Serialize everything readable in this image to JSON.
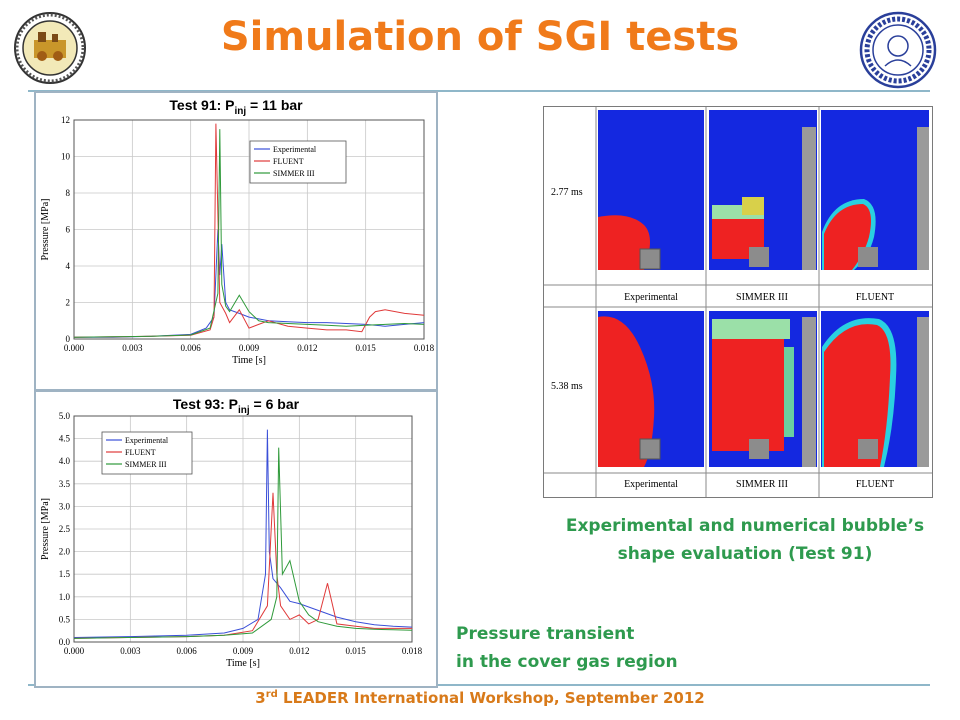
{
  "slide": {
    "title": "Simulation of SGI tests",
    "footer_prefix": "3",
    "footer_sup": "rd",
    "footer_rest": " LEADER International Workshop, September 2012",
    "colors": {
      "title": "#f07a1a",
      "caption": "#2e9a4e",
      "footer": "#d87a1a",
      "rule": "#8fb7c9"
    }
  },
  "logos": {
    "left": {
      "icon": "enea-seal-icon",
      "text": "ENEA"
    },
    "right": {
      "icon": "university-seal-icon",
      "text": "IN SUPREMÆ DIGNITATIS 1343"
    }
  },
  "captions": {
    "bubble_line1": "Experimental and numerical bubble’s",
    "bubble_line2": "shape evaluation (Test 91)",
    "pressure_line1": "Pressure transient",
    "pressure_line2": "in the cover gas region"
  },
  "bubble_figure": {
    "rows": [
      "2.77 ms",
      "5.38 ms"
    ],
    "columns": [
      "Experimental",
      "SIMMER III",
      "FLUENT"
    ]
  },
  "chart_data": [
    {
      "type": "line",
      "title_main": "Test 91: P",
      "title_sub": "inj",
      "title_tail": " = 11 bar",
      "xlabel": "Time [s]",
      "ylabel": "Pressure [MPa]",
      "xlim": [
        0,
        0.018
      ],
      "ylim": [
        0,
        12
      ],
      "xticks": [
        "0.000",
        "0.003",
        "0.006",
        "0.009",
        "0.012",
        "0.015",
        "0.018"
      ],
      "yticks": [
        "0",
        "2",
        "4",
        "6",
        "8",
        "10",
        "12"
      ],
      "legend_position": "top-right",
      "grid": true,
      "series": [
        {
          "name": "Experimental",
          "color": "#3a4fd8",
          "points": [
            [
              0,
              0.1
            ],
            [
              0.002,
              0.1
            ],
            [
              0.004,
              0.15
            ],
            [
              0.006,
              0.25
            ],
            [
              0.0068,
              0.6
            ],
            [
              0.0072,
              1.2
            ],
            [
              0.0074,
              6.0
            ],
            [
              0.0075,
              3.5
            ],
            [
              0.0076,
              5.2
            ],
            [
              0.0078,
              2.0
            ],
            [
              0.008,
              1.6
            ],
            [
              0.0085,
              1.4
            ],
            [
              0.009,
              1.2
            ],
            [
              0.0095,
              1.1
            ],
            [
              0.01,
              1.0
            ],
            [
              0.011,
              0.95
            ],
            [
              0.012,
              0.9
            ],
            [
              0.013,
              0.9
            ],
            [
              0.014,
              0.85
            ],
            [
              0.015,
              0.8
            ],
            [
              0.016,
              0.7
            ],
            [
              0.017,
              0.8
            ],
            [
              0.018,
              0.9
            ]
          ]
        },
        {
          "name": "FLUENT",
          "color": "#e03a3a",
          "points": [
            [
              0,
              0.1
            ],
            [
              0.002,
              0.12
            ],
            [
              0.004,
              0.15
            ],
            [
              0.006,
              0.2
            ],
            [
              0.007,
              0.5
            ],
            [
              0.0072,
              1.2
            ],
            [
              0.0073,
              11.8
            ],
            [
              0.0075,
              2.0
            ],
            [
              0.0078,
              1.4
            ],
            [
              0.008,
              0.9
            ],
            [
              0.0085,
              1.6
            ],
            [
              0.009,
              0.6
            ],
            [
              0.0095,
              0.8
            ],
            [
              0.01,
              1.0
            ],
            [
              0.011,
              0.7
            ],
            [
              0.012,
              0.6
            ],
            [
              0.013,
              0.5
            ],
            [
              0.014,
              0.5
            ],
            [
              0.0148,
              0.4
            ],
            [
              0.0152,
              1.2
            ],
            [
              0.0155,
              1.5
            ],
            [
              0.016,
              1.6
            ],
            [
              0.017,
              1.4
            ],
            [
              0.018,
              1.3
            ]
          ]
        },
        {
          "name": "SIMMER III",
          "color": "#2f9a3a",
          "points": [
            [
              0,
              0.1
            ],
            [
              0.002,
              0.12
            ],
            [
              0.004,
              0.15
            ],
            [
              0.006,
              0.22
            ],
            [
              0.007,
              0.6
            ],
            [
              0.0074,
              2.5
            ],
            [
              0.0075,
              11.5
            ],
            [
              0.0076,
              3.0
            ],
            [
              0.0078,
              1.8
            ],
            [
              0.008,
              1.5
            ],
            [
              0.0085,
              2.4
            ],
            [
              0.009,
              1.5
            ],
            [
              0.0095,
              1.0
            ],
            [
              0.01,
              0.9
            ],
            [
              0.011,
              0.85
            ],
            [
              0.012,
              0.8
            ],
            [
              0.013,
              0.75
            ],
            [
              0.014,
              0.7
            ],
            [
              0.015,
              0.75
            ],
            [
              0.016,
              0.8
            ],
            [
              0.017,
              0.85
            ],
            [
              0.018,
              0.8
            ]
          ]
        }
      ]
    },
    {
      "type": "line",
      "title_main": "Test 93: P",
      "title_sub": "inj",
      "title_tail": " = 6 bar",
      "xlabel": "Time [s]",
      "ylabel": "Pressure [MPa]",
      "xlim": [
        0,
        0.018
      ],
      "ylim": [
        0,
        5.0
      ],
      "xticks": [
        "0.000",
        "0.003",
        "0.006",
        "0.009",
        "0.012",
        "0.015",
        "0.018"
      ],
      "yticks": [
        "0.0",
        "0.5",
        "1.0",
        "1.5",
        "2.0",
        "2.5",
        "3.0",
        "3.5",
        "4.0",
        "4.5",
        "5.0"
      ],
      "legend_position": "top-left",
      "grid": true,
      "series": [
        {
          "name": "Experimental",
          "color": "#3a4fd8",
          "points": [
            [
              0,
              0.1
            ],
            [
              0.003,
              0.12
            ],
            [
              0.006,
              0.15
            ],
            [
              0.008,
              0.2
            ],
            [
              0.009,
              0.3
            ],
            [
              0.0098,
              0.5
            ],
            [
              0.0102,
              1.5
            ],
            [
              0.0103,
              4.7
            ],
            [
              0.0104,
              2.0
            ],
            [
              0.0106,
              1.4
            ],
            [
              0.011,
              1.2
            ],
            [
              0.0115,
              0.9
            ],
            [
              0.012,
              0.85
            ],
            [
              0.013,
              0.7
            ],
            [
              0.014,
              0.55
            ],
            [
              0.015,
              0.45
            ],
            [
              0.016,
              0.38
            ],
            [
              0.017,
              0.35
            ],
            [
              0.018,
              0.33
            ]
          ]
        },
        {
          "name": "FLUENT",
          "color": "#e03a3a",
          "points": [
            [
              0,
              0.08
            ],
            [
              0.003,
              0.1
            ],
            [
              0.006,
              0.12
            ],
            [
              0.008,
              0.15
            ],
            [
              0.0095,
              0.25
            ],
            [
              0.0103,
              0.8
            ],
            [
              0.0106,
              3.3
            ],
            [
              0.0108,
              1.5
            ],
            [
              0.011,
              0.8
            ],
            [
              0.0115,
              0.5
            ],
            [
              0.012,
              0.6
            ],
            [
              0.0125,
              0.4
            ],
            [
              0.013,
              0.5
            ],
            [
              0.0135,
              1.3
            ],
            [
              0.014,
              0.4
            ],
            [
              0.015,
              0.35
            ],
            [
              0.016,
              0.3
            ],
            [
              0.017,
              0.3
            ],
            [
              0.018,
              0.3
            ]
          ]
        },
        {
          "name": "SIMMER III",
          "color": "#2f9a3a",
          "points": [
            [
              0,
              0.08
            ],
            [
              0.003,
              0.1
            ],
            [
              0.006,
              0.12
            ],
            [
              0.008,
              0.15
            ],
            [
              0.0095,
              0.2
            ],
            [
              0.0105,
              0.5
            ],
            [
              0.0108,
              1.0
            ],
            [
              0.0109,
              4.3
            ],
            [
              0.0111,
              1.5
            ],
            [
              0.0115,
              1.8
            ],
            [
              0.012,
              0.9
            ],
            [
              0.0125,
              0.6
            ],
            [
              0.013,
              0.45
            ],
            [
              0.014,
              0.35
            ],
            [
              0.015,
              0.3
            ],
            [
              0.016,
              0.28
            ],
            [
              0.017,
              0.27
            ],
            [
              0.018,
              0.26
            ]
          ]
        }
      ]
    }
  ]
}
